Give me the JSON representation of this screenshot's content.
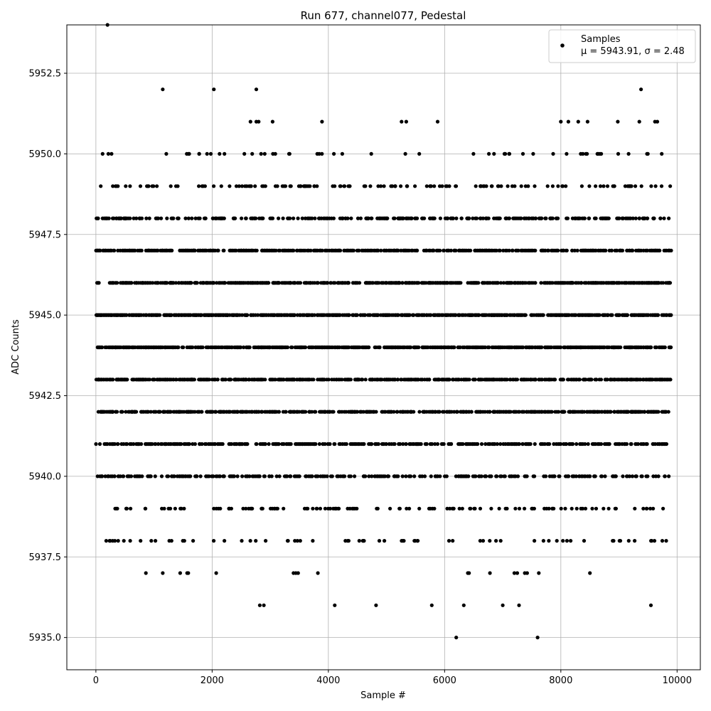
{
  "chart_data": {
    "type": "scatter",
    "title": "Run 677, channel077, Pedestal",
    "xlabel": "Sample #",
    "ylabel": "ADC Counts",
    "xlim": [
      -500,
      10400
    ],
    "ylim": [
      5934.0,
      5954.0
    ],
    "xticks": [
      0,
      2000,
      4000,
      6000,
      8000,
      10000
    ],
    "xtick_labels": [
      "0",
      "2000",
      "4000",
      "6000",
      "8000",
      "10000"
    ],
    "yticks": [
      5935.0,
      5937.5,
      5940.0,
      5942.5,
      5945.0,
      5947.5,
      5950.0,
      5952.5
    ],
    "ytick_labels": [
      "5935.0",
      "5937.5",
      "5940.0",
      "5942.5",
      "5945.0",
      "5947.5",
      "5950.0",
      "5952.5"
    ],
    "grid": true,
    "legend_position": "top-right",
    "legend": {
      "label": "Samples",
      "stats": "μ = 5943.91, σ = 2.48"
    },
    "series": [
      {
        "name": "Samples",
        "color": "#000000",
        "n": 10000,
        "x_range": [
          0,
          9900
        ],
        "levels": [
          {
            "y": 5935,
            "x": [
              6200,
              7600
            ]
          },
          {
            "y": 5936,
            "x": [
              2820,
              2890,
              4110,
              4820,
              5780,
              6330,
              7000,
              7280,
              9550
            ]
          },
          {
            "y": 5937,
            "x": [
              860,
              1150,
              1450,
              1570,
              1590,
              2070,
              3400,
              3440,
              3480,
              3820,
              6400,
              6420,
              6780,
              7200,
              7250,
              7380,
              7420,
              7620,
              8500
            ]
          },
          {
            "y": 5954,
            "x": [
              200
            ]
          },
          {
            "y": 5952,
            "x": [
              1150,
              2030,
              2760,
              9380
            ]
          },
          {
            "y": 5951,
            "x": [
              2660,
              2760,
              2800,
              3040,
              3890,
              5260,
              5340,
              5880,
              8000,
              8130,
              8300,
              8460,
              8980,
              9350,
              9620,
              9660
            ]
          }
        ],
        "bands": [
          {
            "y": 5950,
            "density": 0.015
          },
          {
            "y": 5949,
            "density": 0.04
          },
          {
            "y": 5948,
            "density": 0.09
          },
          {
            "y": 5947,
            "density": 0.15
          },
          {
            "y": 5946,
            "density": 0.17
          },
          {
            "y": 5945,
            "density": 0.2
          },
          {
            "y": 5944,
            "density": 0.2
          },
          {
            "y": 5943,
            "density": 0.17
          },
          {
            "y": 5942,
            "density": 0.15
          },
          {
            "y": 5941,
            "density": 0.11
          },
          {
            "y": 5940,
            "density": 0.08
          },
          {
            "y": 5939,
            "density": 0.035
          },
          {
            "y": 5938,
            "density": 0.02
          }
        ]
      }
    ]
  }
}
